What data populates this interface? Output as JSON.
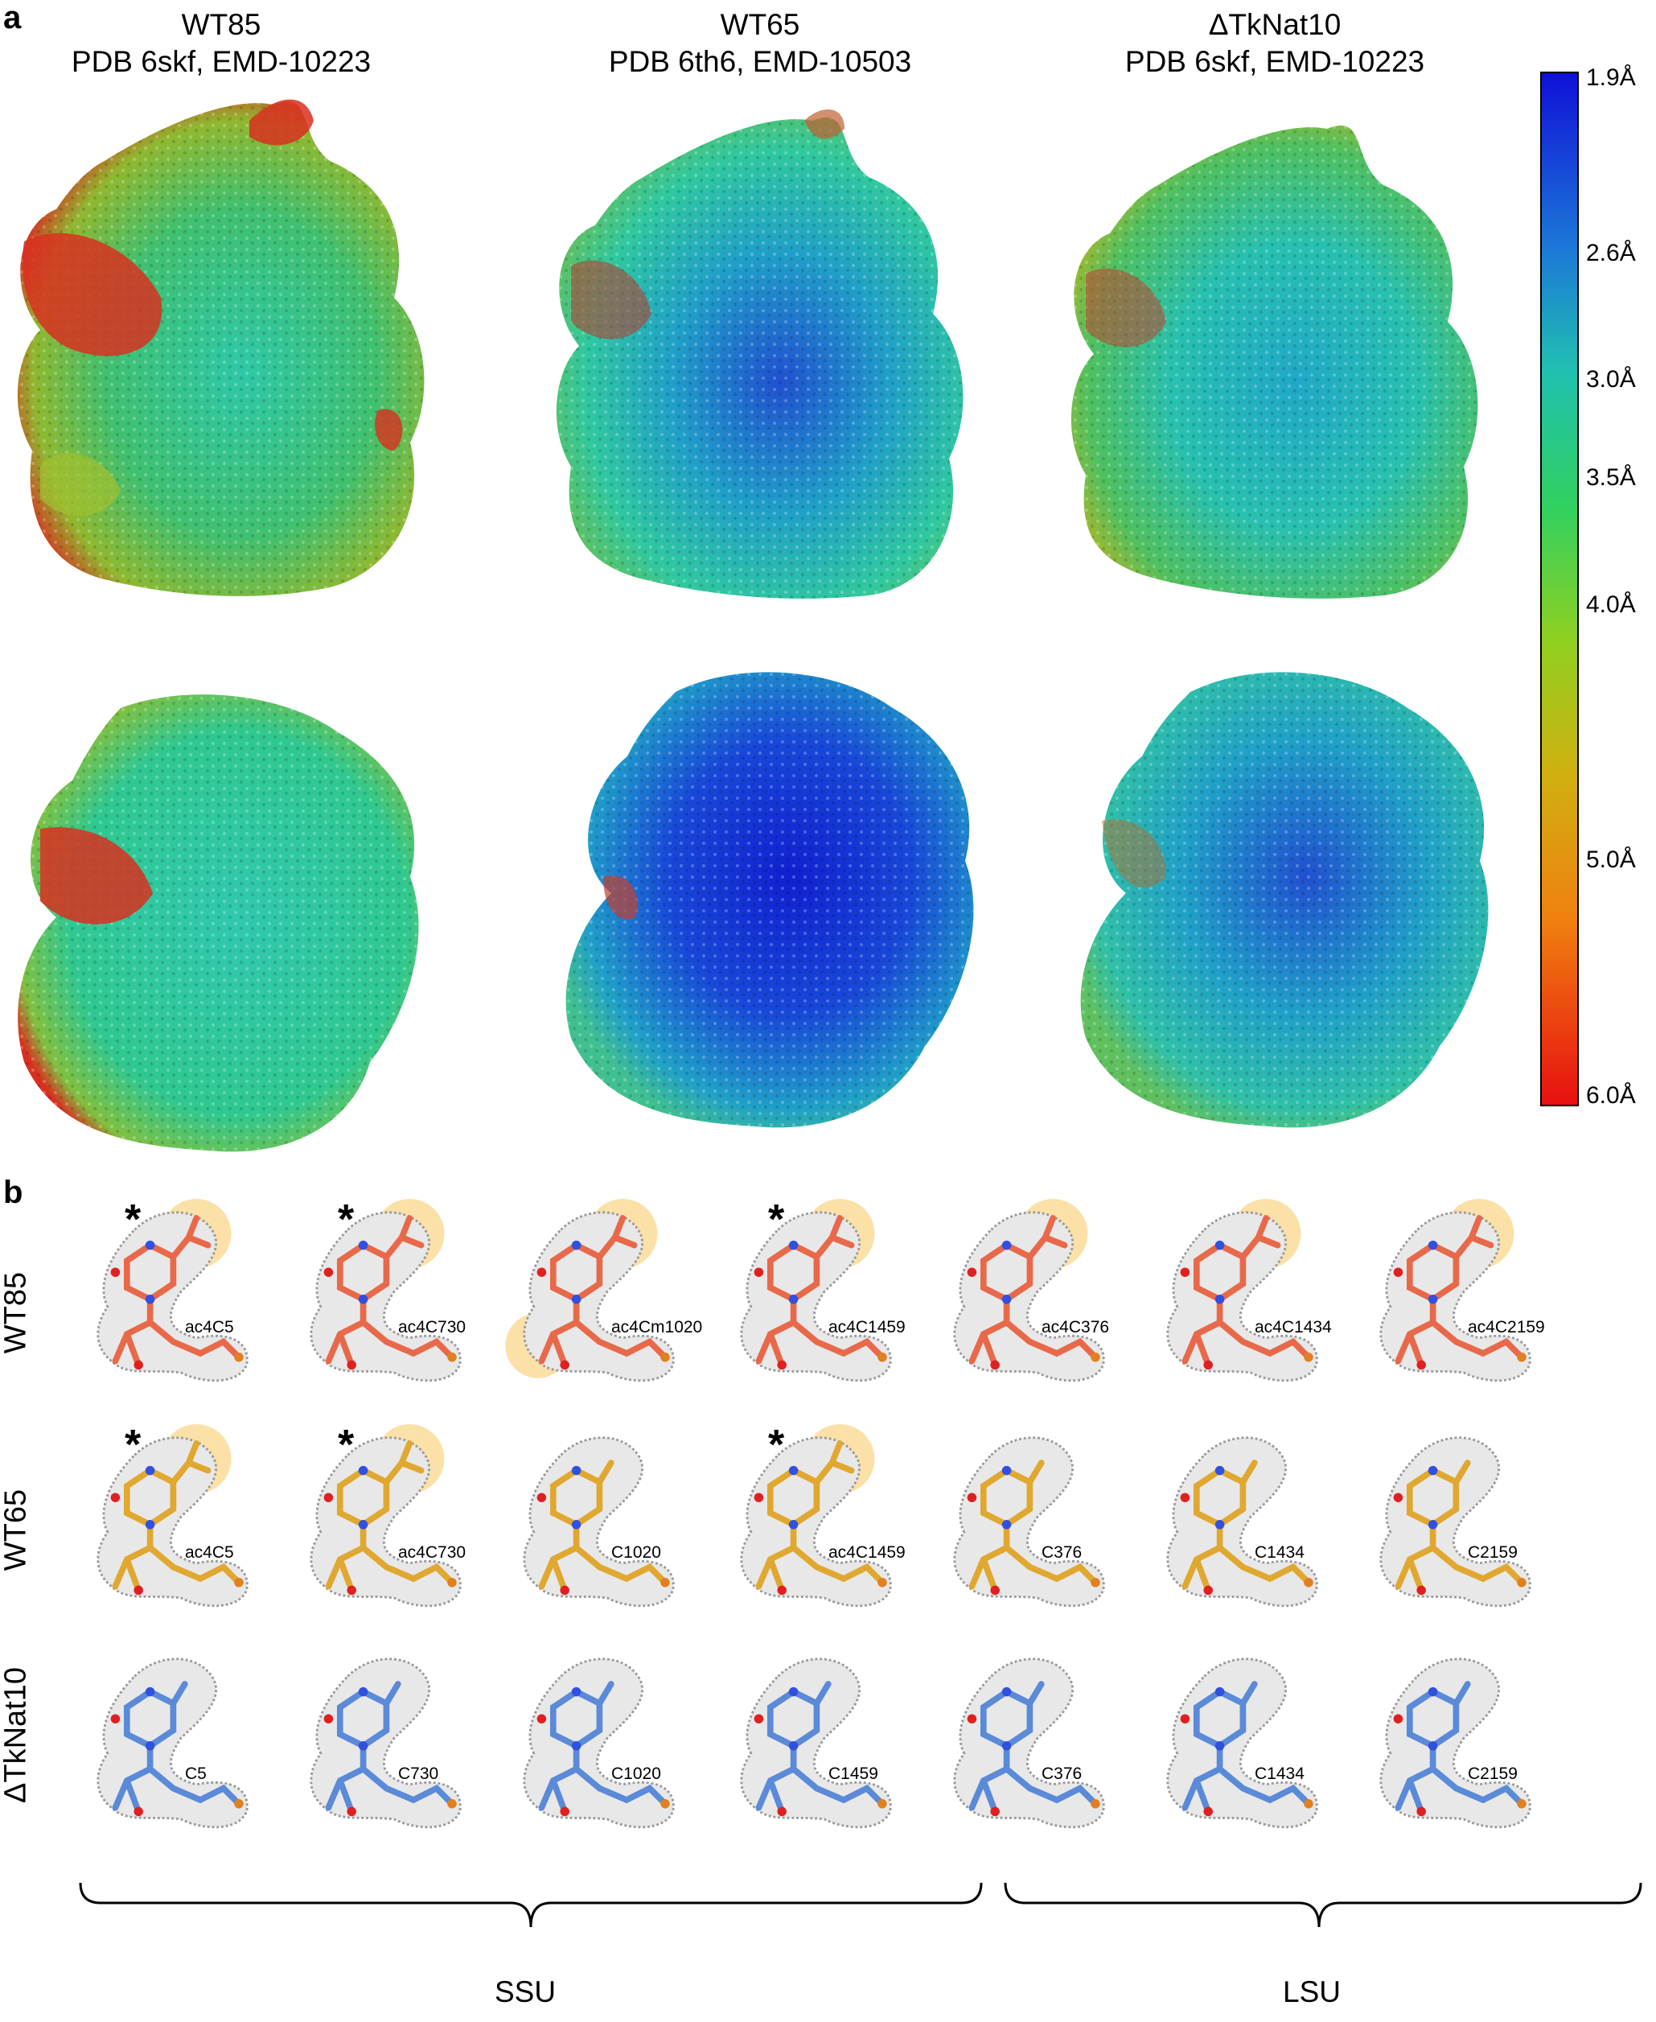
{
  "panel_a": {
    "letter": "a",
    "columns": [
      {
        "name": "WT85",
        "ids": "PDB 6skf, EMD-10223"
      },
      {
        "name": "WT65",
        "ids": "PDB 6th6, EMD-10503"
      },
      {
        "name": "ΔTkNat10",
        "ids": "PDB 6skf, EMD-10223"
      }
    ],
    "color_scale": {
      "labels": [
        "1.9Å",
        "2.6Å",
        "3.0Å",
        "3.5Å",
        "4.0Å",
        "5.0Å",
        "6.0Å"
      ],
      "values": [
        1.9,
        2.6,
        3.0,
        3.5,
        4.0,
        5.0,
        6.0
      ],
      "colors": [
        "#1010d8",
        "#20a0d8",
        "#20d0a0",
        "#30d040",
        "#a0d020",
        "#f08010",
        "#e81010"
      ]
    }
  },
  "panel_b": {
    "letter": "b",
    "rows": [
      {
        "label": "WT85",
        "color": "#e8694a",
        "residues": [
          "ac4C5",
          "ac4C730",
          "ac4Cm1020",
          "ac4C1459",
          "ac4C376",
          "ac4C1434",
          "ac4C2159"
        ],
        "acetyl": [
          true,
          true,
          true,
          true,
          true,
          true,
          true
        ],
        "stars": [
          true,
          true,
          false,
          true,
          false,
          false,
          false
        ]
      },
      {
        "label": "WT65",
        "color": "#e0a830",
        "residues": [
          "ac4C5",
          "ac4C730",
          "C1020",
          "ac4C1459",
          "C376",
          "C1434",
          "C2159"
        ],
        "acetyl": [
          true,
          true,
          false,
          true,
          false,
          false,
          false
        ],
        "stars": [
          true,
          true,
          false,
          true,
          false,
          false,
          false
        ]
      },
      {
        "label": "ΔTkNat10",
        "color": "#5a8ad8",
        "residues": [
          "C5",
          "C730",
          "C1020",
          "C1459",
          "C376",
          "C1434",
          "C2159"
        ],
        "acetyl": [
          false,
          false,
          false,
          false,
          false,
          false,
          false
        ],
        "stars": [
          false,
          false,
          false,
          false,
          false,
          false,
          false
        ]
      }
    ],
    "star_symbol": "*",
    "groups": [
      {
        "label": "SSU"
      },
      {
        "label": "LSU"
      }
    ]
  }
}
